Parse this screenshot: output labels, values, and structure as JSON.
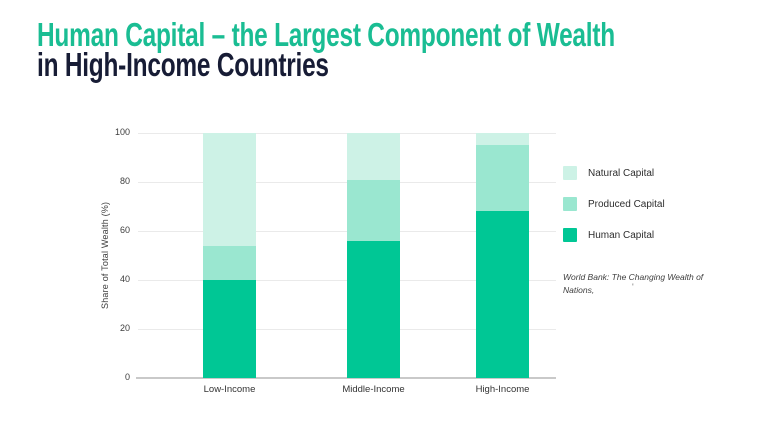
{
  "title": {
    "line1": "Human Capital – the Largest Component of Wealth",
    "line2": "in High-Income Countries"
  },
  "colors": {
    "title_accent": "#1abd93",
    "title_navy": "#171c35",
    "human_capital": "#00c795",
    "produced_capital": "#9ae7d0",
    "natural_capital": "#cdf2e6",
    "gridline": "#eaeaea",
    "axis_line": "#c9c9c9",
    "axis_text": "#3d3d3d"
  },
  "chart_data": {
    "type": "bar",
    "stacked": true,
    "categories": [
      "Low-Income",
      "Middle-Income",
      "High-Income"
    ],
    "series": [
      {
        "name": "Human Capital",
        "values": [
          40,
          56,
          68
        ],
        "color": "#00c795"
      },
      {
        "name": "Produced Capital",
        "values": [
          14,
          25,
          27
        ],
        "color": "#9ae7d0"
      },
      {
        "name": "Natural Capital",
        "values": [
          46,
          19,
          5
        ],
        "color": "#cdf2e6"
      }
    ],
    "ylabel": "Share of Total Wealth (%)",
    "xlabel": "",
    "ylim": [
      0,
      100
    ],
    "yticks": [
      0,
      20,
      40,
      60,
      80,
      100
    ],
    "grid": true,
    "legend_position": "right"
  },
  "legend": {
    "items": [
      {
        "label": "Natural Capital",
        "color": "#cdf2e6"
      },
      {
        "label": "Produced Capital",
        "color": "#9ae7d0"
      },
      {
        "label": "Human Capital",
        "color": "#00c795"
      }
    ]
  },
  "source": {
    "line1": "World Bank: The Changing Wealth of",
    "line2": "Nations,",
    "stray_mark": "'"
  }
}
